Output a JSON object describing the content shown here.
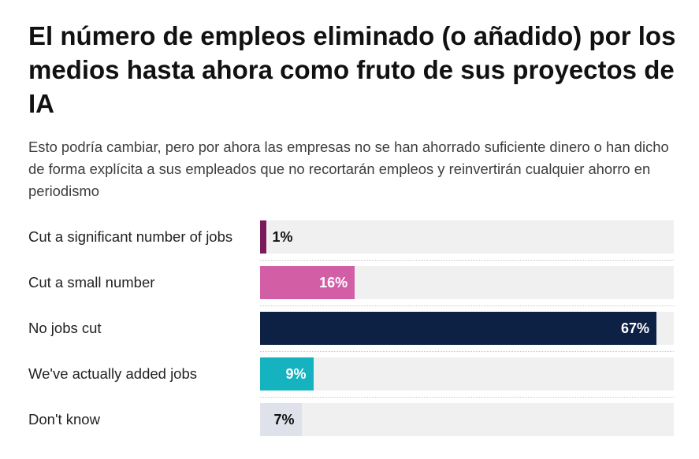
{
  "title": "El número de empleos eliminado (o añadido) por los medios hasta ahora como fruto de sus proyectos de IA",
  "subtitle": "Esto podría cambiar, pero por ahora las empresas no se han ahorrado suficiente dinero o han dicho de forma explícita a sus empleados que no recortarán empleos y reinvertirán cualquier ahorro en periodismo",
  "chart_data": {
    "type": "bar",
    "orientation": "horizontal",
    "title": "El número de empleos eliminado (o añadido) por los medios hasta ahora como fruto de sus proyectos de IA",
    "xlabel": "",
    "ylabel": "",
    "xlim": [
      0,
      100
    ],
    "grid": false,
    "legend": "none",
    "categories": [
      "Cut a significant number of jobs",
      "Cut a small number",
      "No jobs cut",
      "We've actually added jobs",
      "Don't know"
    ],
    "values": [
      1,
      16,
      67,
      9,
      7
    ],
    "value_labels": [
      "1%",
      "16%",
      "67%",
      "9%",
      "7%"
    ],
    "colors": [
      "#7a1a5c",
      "#d25fa6",
      "#0d2145",
      "#15b3bf",
      "#dfe2ea"
    ],
    "label_colors": [
      "#111111",
      "#ffffff",
      "#ffffff",
      "#ffffff",
      "#111111"
    ],
    "track_color": "#f0f0f0"
  }
}
